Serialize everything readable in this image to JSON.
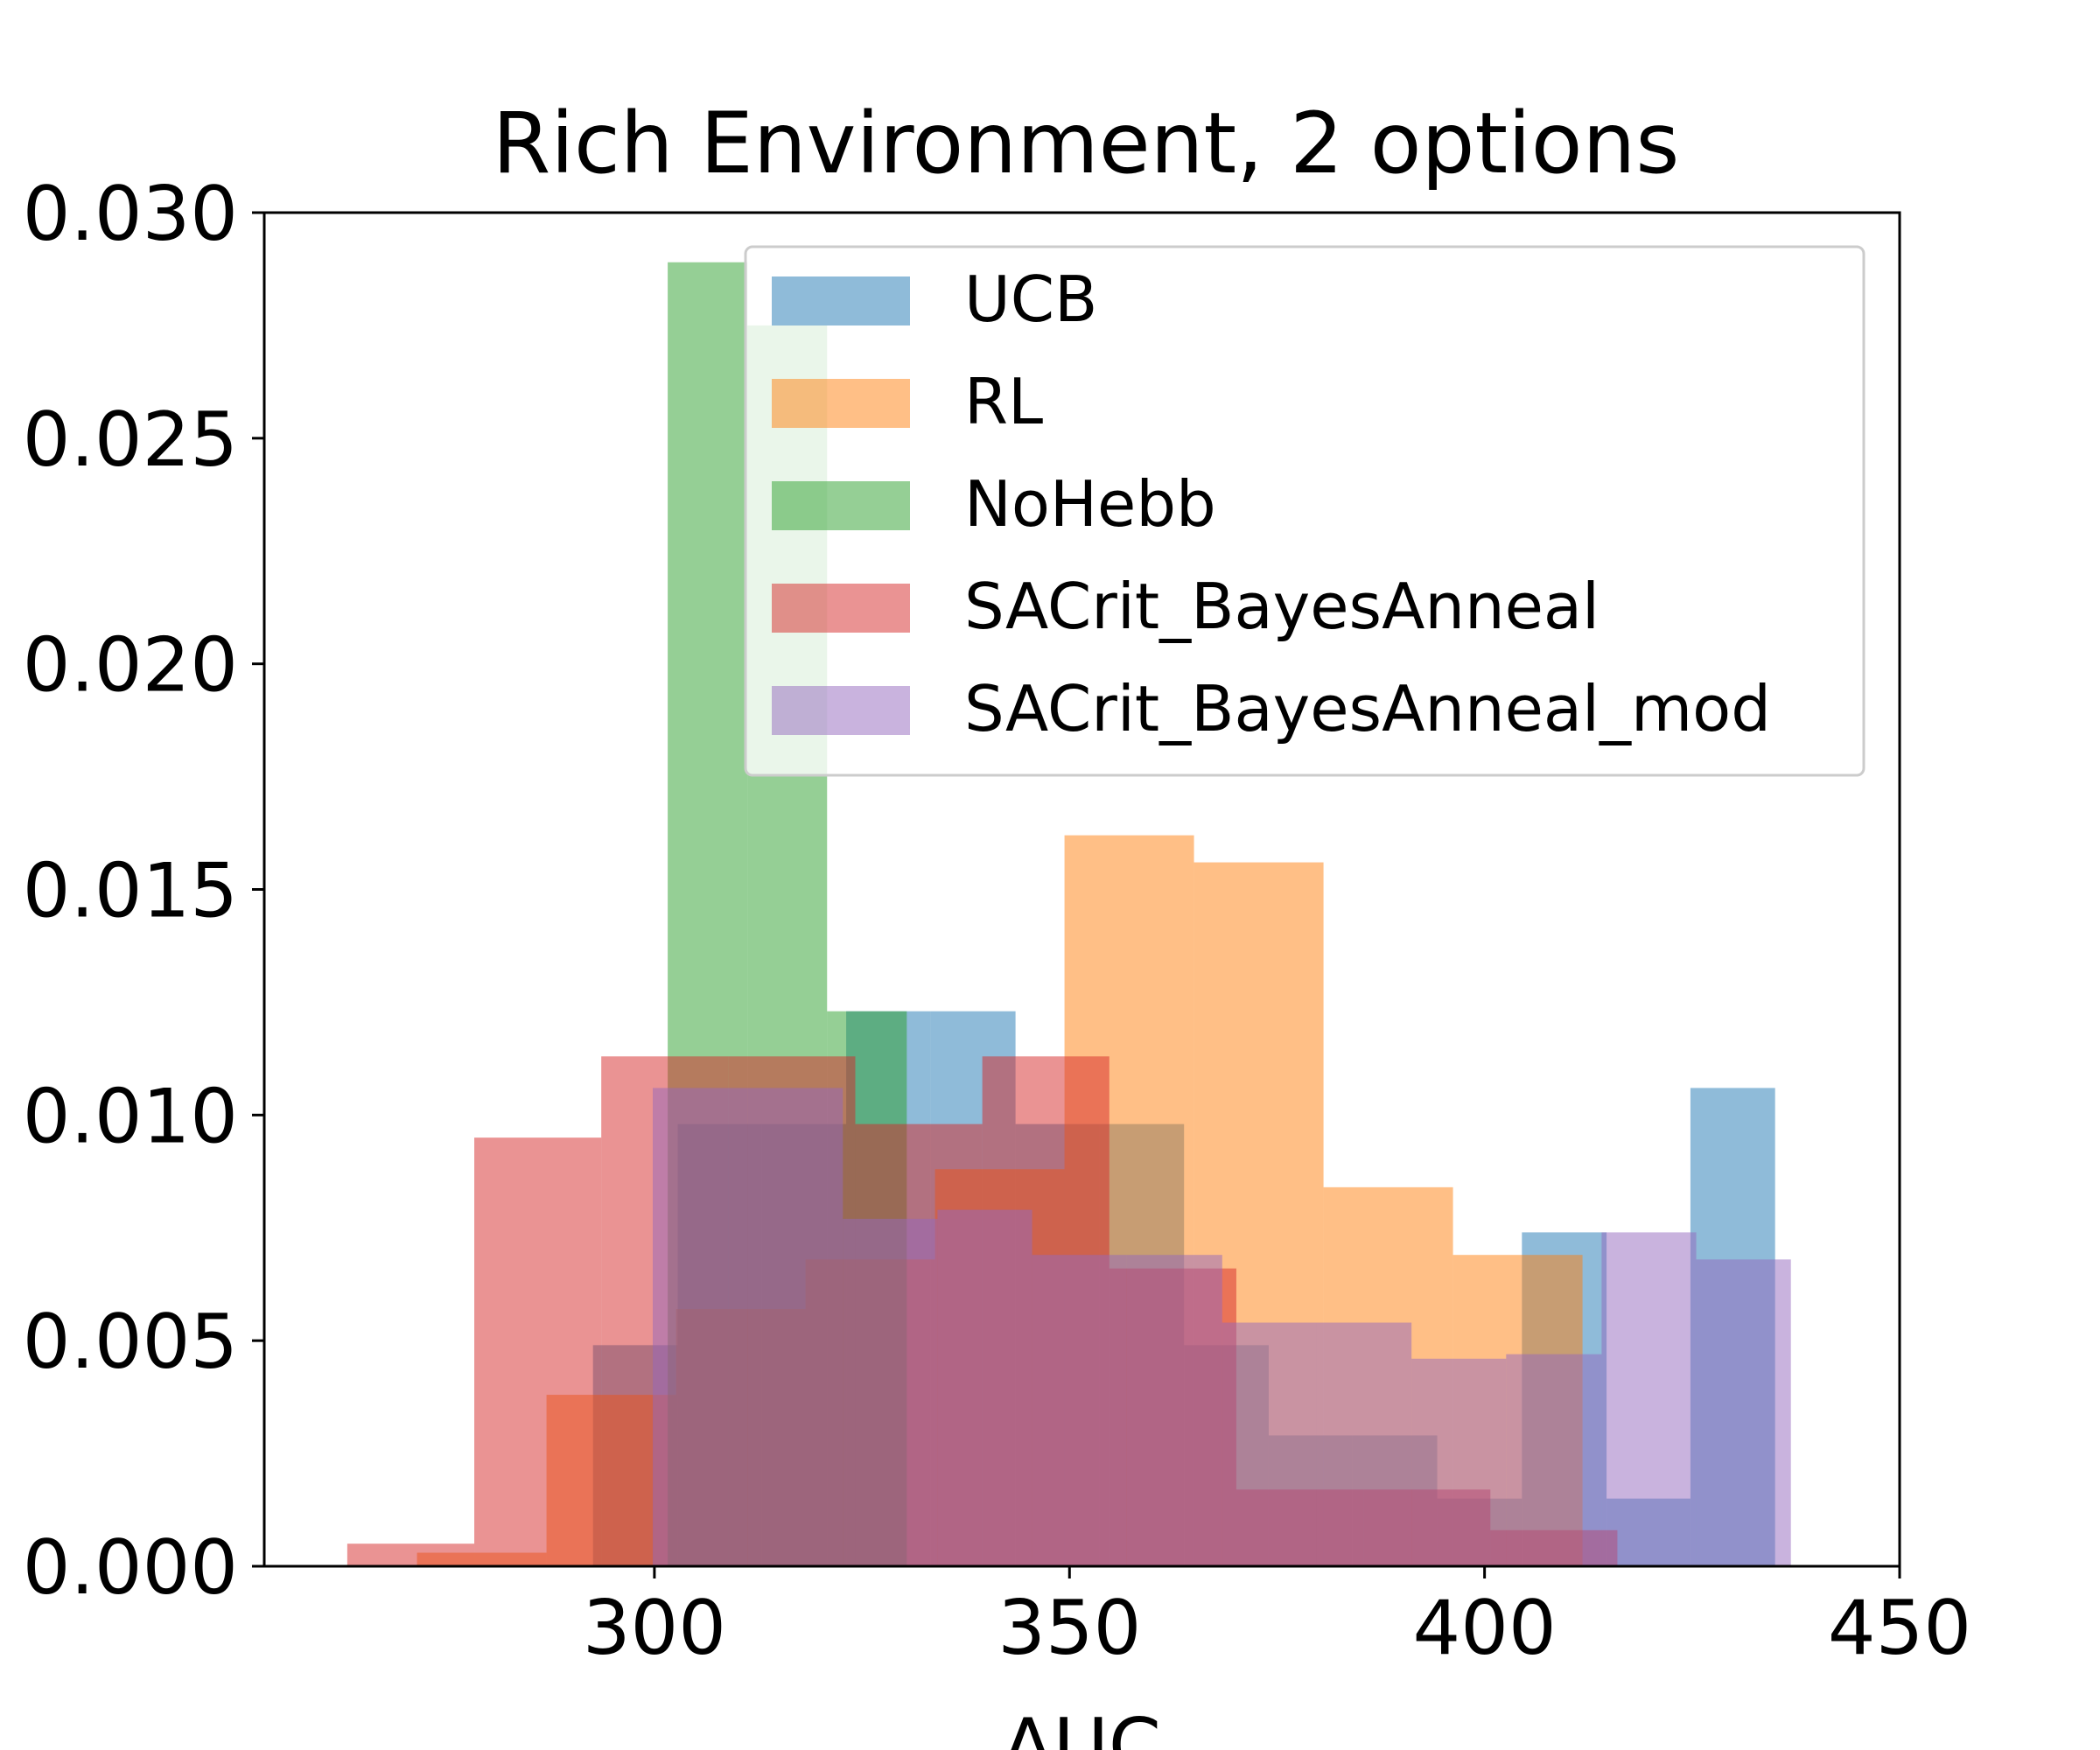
{
  "chart_data": {
    "type": "histogram",
    "title": "Rich Environment, 2 options",
    "xlabel": "AUC",
    "ylabel": "",
    "xlim": [
      253,
      450
    ],
    "ylim": [
      0,
      0.03
    ],
    "xticks": [
      300,
      350,
      400,
      450
    ],
    "xtick_labels": [
      "300",
      "350",
      "400",
      "450"
    ],
    "yticks": [
      0,
      0.005,
      0.01,
      0.015,
      0.02,
      0.025,
      0.03
    ],
    "ytick_labels": [
      "0.000",
      "0.005",
      "0.010",
      "0.015",
      "0.020",
      "0.025",
      "0.030"
    ],
    "grid": false,
    "legend": {
      "position": "top-right"
    },
    "alpha": 0.5,
    "series": [
      {
        "name": "UCB",
        "color": "#1f77b4",
        "bin_edges": [
          292.6,
          302.8,
          312.9,
          323.1,
          333.3,
          343.5,
          353.6,
          363.8,
          374.0,
          384.1,
          394.3,
          404.5,
          414.7,
          424.8,
          435.0
        ],
        "values": [
          0.0049,
          0.0098,
          0.0098,
          0.0123,
          0.0123,
          0.0098,
          0.0098,
          0.0049,
          0.0029,
          0.0029,
          0.0015,
          0.0074,
          0.0015,
          0.0106
        ]
      },
      {
        "name": "RL",
        "color": "#ff7f0e",
        "bin_edges": [
          271.4,
          287.0,
          302.6,
          318.2,
          333.8,
          349.4,
          365.0,
          380.6,
          396.2,
          411.8
        ],
        "values": [
          0.0003,
          0.0038,
          0.0057,
          0.0068,
          0.0088,
          0.0162,
          0.0156,
          0.0084,
          0.0069
        ],
        "note": ""
      },
      {
        "name": "NoHebb",
        "color": "#2ca02c",
        "bin_edges": [
          301.6,
          311.2,
          320.8,
          330.4
        ],
        "values": [
          0.0289,
          0.0275,
          0.0123
        ]
      },
      {
        "name": "SACrit_BayesAnneal",
        "color": "#d62728",
        "bin_edges": [
          263.0,
          278.3,
          293.6,
          308.9,
          324.2,
          339.5,
          354.8,
          370.1,
          385.4,
          400.7,
          416.0
        ],
        "values": [
          0.0005,
          0.0095,
          0.0113,
          0.0113,
          0.0098,
          0.0113,
          0.0066,
          0.0017,
          0.0017,
          0.0008
        ]
      },
      {
        "name": "SACrit_BayesAnneal_mod",
        "color": "#9467bd",
        "bin_edges": [
          299.8,
          311.2,
          322.7,
          334.1,
          345.5,
          356.9,
          368.4,
          379.8,
          391.2,
          402.6,
          414.1,
          425.5,
          436.9
        ],
        "values": [
          0.0106,
          0.0106,
          0.0077,
          0.0079,
          0.0069,
          0.0069,
          0.0054,
          0.0054,
          0.0046,
          0.0047,
          0.0074,
          0.0068
        ]
      }
    ]
  }
}
